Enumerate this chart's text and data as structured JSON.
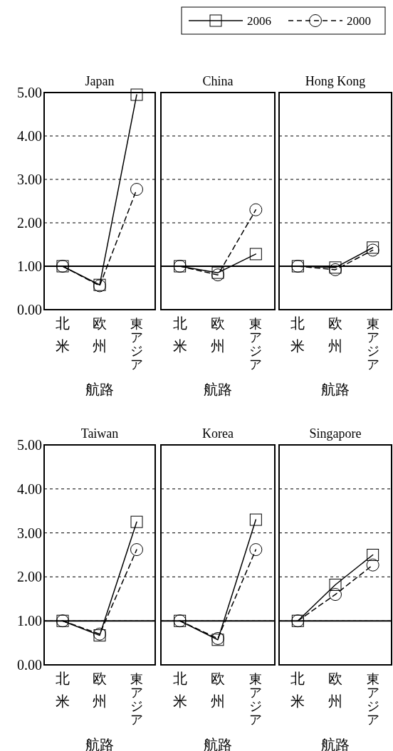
{
  "chart_data": [
    {
      "type": "line",
      "title": "Japan",
      "xlabel": "航路",
      "categories": [
        "北米",
        "欧州",
        "東アジア"
      ],
      "ylim": [
        0,
        5
      ],
      "yticks": [
        {
          "value": 0,
          "label": "0.00"
        },
        {
          "value": 1,
          "label": "1.00"
        },
        {
          "value": 2,
          "label": "2.00"
        },
        {
          "value": 3,
          "label": "3.00"
        },
        {
          "value": 4,
          "label": "4.00"
        },
        {
          "value": 5,
          "label": "5.00"
        }
      ],
      "grid": "y",
      "legend": "top",
      "ref_lines": [
        {
          "axis": "y",
          "value": 1,
          "color": "#000000",
          "line_style": "solid"
        }
      ],
      "series": [
        {
          "name": "2006",
          "color": "#000000",
          "marker": "square",
          "line_style": "solid",
          "values": [
            1.0,
            0.57,
            4.95
          ]
        },
        {
          "name": "2000",
          "color": "#000000",
          "marker": "circle",
          "line_style": "dashed",
          "values": [
            1.0,
            0.55,
            2.77
          ]
        }
      ]
    },
    {
      "type": "line",
      "title": "China",
      "xlabel": "航路",
      "categories": [
        "北米",
        "欧州",
        "東アジア"
      ],
      "ylim": [
        0,
        5
      ],
      "yticks": [
        0,
        1,
        2,
        3,
        4,
        5
      ],
      "grid": "y",
      "tick_labels": "x",
      "ref_lines": [
        {
          "axis": "y",
          "value": 1,
          "color": "#000000",
          "line_style": "solid"
        }
      ],
      "series": [
        {
          "color": "#000000",
          "marker": "square",
          "line_style": "solid",
          "values": [
            1.0,
            0.85,
            1.28
          ]
        },
        {
          "color": "#000000",
          "marker": "circle",
          "line_style": "dashed",
          "values": [
            1.0,
            0.8,
            2.3
          ]
        }
      ]
    },
    {
      "type": "line",
      "title": "Hong Kong",
      "xlabel": "航路",
      "categories": [
        "北米",
        "欧州",
        "東アジア"
      ],
      "ylim": [
        0,
        5
      ],
      "yticks": [
        0,
        1,
        2,
        3,
        4,
        5
      ],
      "grid": "y",
      "tick_labels": "x",
      "ref_lines": [
        {
          "axis": "y",
          "value": 1,
          "color": "#000000",
          "line_style": "solid"
        }
      ],
      "series": [
        {
          "color": "#000000",
          "marker": "square",
          "line_style": "solid",
          "values": [
            1.0,
            0.97,
            1.43
          ]
        },
        {
          "color": "#000000",
          "marker": "circle",
          "line_style": "dashed",
          "values": [
            1.0,
            0.92,
            1.37
          ]
        }
      ]
    },
    {
      "type": "line",
      "title": "Taiwan",
      "xlabel": "航路",
      "categories": [
        "北米",
        "欧州",
        "東アジア"
      ],
      "ylim": [
        0,
        5
      ],
      "yticks": [
        {
          "value": 0,
          "label": "0.00"
        },
        {
          "value": 1,
          "label": "1.00"
        },
        {
          "value": 2,
          "label": "2.00"
        },
        {
          "value": 3,
          "label": "3.00"
        },
        {
          "value": 4,
          "label": "4.00"
        },
        {
          "value": 5,
          "label": "5.00"
        }
      ],
      "grid": "y",
      "ref_lines": [
        {
          "axis": "y",
          "value": 1,
          "color": "#000000",
          "line_style": "solid"
        }
      ],
      "series": [
        {
          "color": "#000000",
          "marker": "square",
          "line_style": "solid",
          "values": [
            1.0,
            0.67,
            3.25
          ]
        },
        {
          "color": "#000000",
          "marker": "circle",
          "line_style": "dashed",
          "values": [
            1.0,
            0.7,
            2.62
          ]
        }
      ]
    },
    {
      "type": "line",
      "title": "Korea",
      "xlabel": "航路",
      "categories": [
        "北米",
        "欧州",
        "東アジア"
      ],
      "ylim": [
        0,
        5
      ],
      "yticks": [
        0,
        1,
        2,
        3,
        4,
        5
      ],
      "grid": "y",
      "tick_labels": "x",
      "ref_lines": [
        {
          "axis": "y",
          "value": 1,
          "color": "#000000",
          "line_style": "solid"
        }
      ],
      "series": [
        {
          "color": "#000000",
          "marker": "square",
          "line_style": "solid",
          "values": [
            1.0,
            0.57,
            3.3
          ]
        },
        {
          "color": "#000000",
          "marker": "circle",
          "line_style": "dashed",
          "values": [
            1.0,
            0.6,
            2.62
          ]
        }
      ]
    },
    {
      "type": "line",
      "title": "Singapore",
      "xlabel": "航路",
      "categories": [
        "北米",
        "欧州",
        "東アジア"
      ],
      "ylim": [
        0,
        5
      ],
      "yticks": [
        0,
        1,
        2,
        3,
        4,
        5
      ],
      "grid": "y",
      "tick_labels": "x",
      "ref_lines": [
        {
          "axis": "y",
          "value": 1,
          "color": "#000000",
          "line_style": "solid"
        }
      ],
      "series": [
        {
          "color": "#000000",
          "marker": "square",
          "line_style": "solid",
          "values": [
            1.0,
            1.82,
            2.5
          ]
        },
        {
          "color": "#000000",
          "marker": "circle",
          "line_style": "dashed",
          "values": [
            1.0,
            1.6,
            2.27
          ]
        }
      ]
    }
  ]
}
